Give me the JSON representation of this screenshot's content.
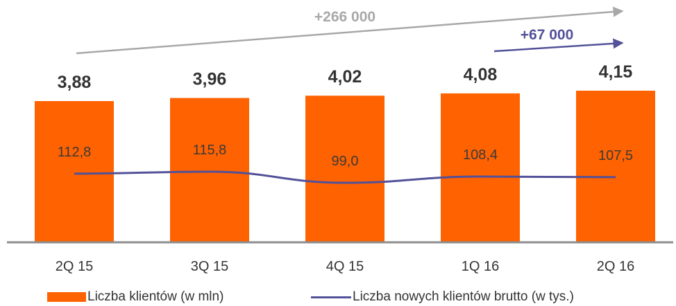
{
  "chart_data": {
    "type": "bar",
    "categories": [
      "2Q 15",
      "3Q 15",
      "4Q 15",
      "1Q 16",
      "2Q 16"
    ],
    "series": [
      {
        "name": "Liczba klientów (w mln)",
        "type": "bar",
        "values": [
          3.88,
          3.96,
          4.02,
          4.08,
          4.15
        ],
        "labels": [
          "3,88",
          "3,96",
          "4,02",
          "4,08",
          "4,15"
        ],
        "color": "#FF6200"
      },
      {
        "name": "Liczba nowych klientów brutto (w tys.)",
        "type": "line",
        "values": [
          112.8,
          115.8,
          99.0,
          108.4,
          107.5
        ],
        "labels": [
          "112,8",
          "115,8",
          "99,0",
          "108,4",
          "107,5"
        ],
        "color": "#525199"
      }
    ],
    "annotations": [
      {
        "text": "+266 000",
        "from": "2Q 15",
        "to": "2Q 16",
        "color": "#A8A8A8"
      },
      {
        "text": "+67 000",
        "from": "1Q 16",
        "to": "2Q 16",
        "color": "#525199"
      }
    ],
    "legend_position": "bottom",
    "grid": false
  }
}
